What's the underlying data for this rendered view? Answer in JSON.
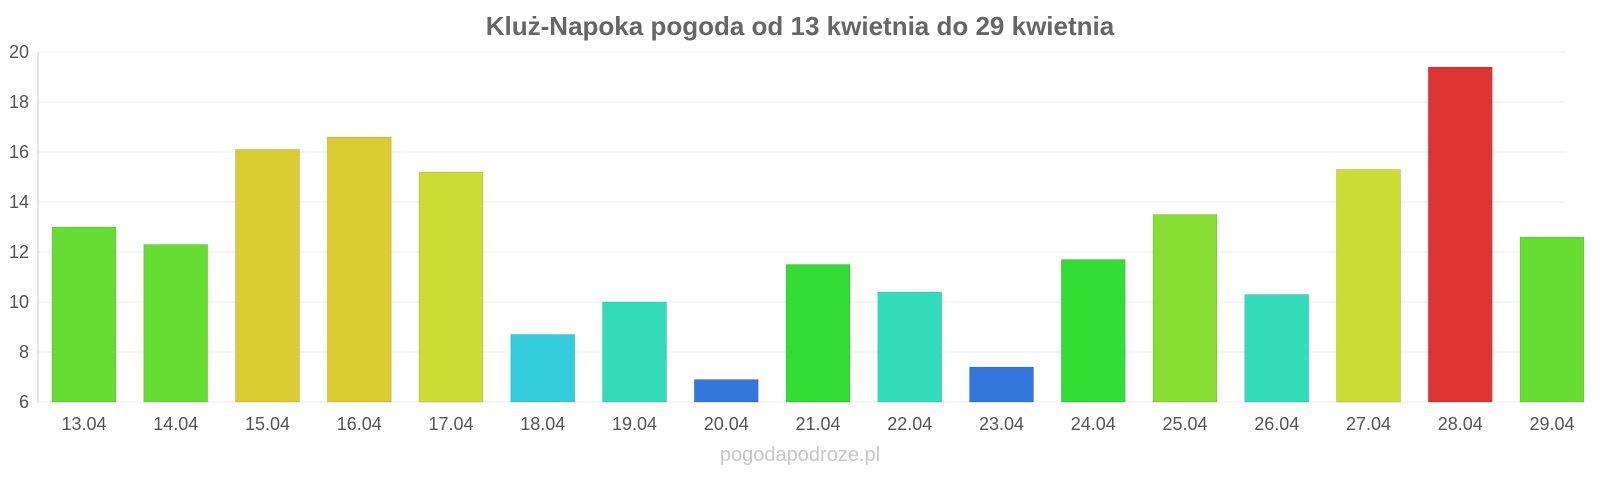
{
  "chart_data": {
    "type": "bar",
    "title": "Kluż-Napoka pogoda od 13 kwietnia do 29 kwietnia",
    "xlabel": "",
    "ylabel": "",
    "ylim": [
      6,
      20
    ],
    "yticks": [
      6,
      8,
      10,
      12,
      14,
      16,
      18,
      20
    ],
    "grid": true,
    "categories": [
      "13.04",
      "14.04",
      "15.04",
      "16.04",
      "17.04",
      "18.04",
      "19.04",
      "20.04",
      "21.04",
      "22.04",
      "23.04",
      "24.04",
      "25.04",
      "26.04",
      "27.04",
      "28.04",
      "29.04"
    ],
    "values": [
      13.0,
      12.3,
      16.1,
      16.6,
      15.2,
      8.7,
      10.0,
      6.9,
      11.5,
      10.4,
      7.4,
      11.7,
      13.5,
      10.3,
      15.3,
      19.4,
      12.6
    ],
    "colors": [
      "#66dd33",
      "#66dd33",
      "#dccc33",
      "#dccc33",
      "#ccdd33",
      "#33ccdd",
      "#33ddbb",
      "#3377dd",
      "#33dd33",
      "#33ddbb",
      "#3377dd",
      "#33dd33",
      "#88dd33",
      "#33ddbb",
      "#ccdd33",
      "#dd3333",
      "#66dd33"
    ]
  },
  "watermark": "pogodapodroze.pl"
}
